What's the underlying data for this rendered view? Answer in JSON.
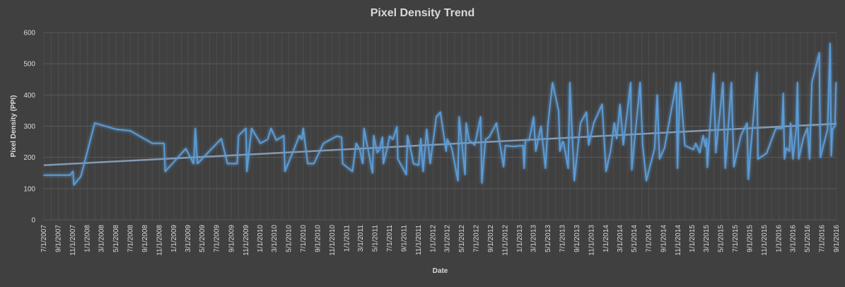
{
  "chart_data": {
    "type": "line",
    "title": "Pixel Density Trend",
    "xlabel": "Date",
    "ylabel": "Pixel Density (PPI)",
    "ylim": [
      0,
      600
    ],
    "yticks": [
      0,
      100,
      200,
      300,
      400,
      500,
      600
    ],
    "xlim": [
      "2007-07-01",
      "2016-09-01"
    ],
    "x_tick_labels": [
      "7/1/2007",
      "9/1/2007",
      "11/1/2007",
      "1/1/2008",
      "3/1/2008",
      "5/1/2008",
      "7/1/2008",
      "9/1/2008",
      "11/1/2008",
      "1/1/2009",
      "3/1/2009",
      "5/1/2009",
      "7/1/2009",
      "9/1/2009",
      "11/1/2009",
      "1/1/2010",
      "3/1/2010",
      "5/1/2010",
      "7/1/2010",
      "9/1/2010",
      "11/1/2010",
      "1/1/2011",
      "3/1/2011",
      "5/1/2011",
      "7/1/2011",
      "9/1/2011",
      "11/1/2011",
      "1/1/2012",
      "3/1/2012",
      "5/1/2012",
      "7/1/2012",
      "9/1/2012",
      "11/1/2012",
      "1/1/2013",
      "3/1/2013",
      "5/1/2013",
      "7/1/2013",
      "9/1/2013",
      "11/1/2013",
      "1/1/2014",
      "3/1/2014",
      "5/1/2014",
      "7/1/2014",
      "9/1/2014",
      "11/1/2014",
      "1/1/2015",
      "3/1/2015",
      "5/1/2015",
      "7/1/2015",
      "9/1/2015",
      "11/1/2015",
      "1/1/2016",
      "3/1/2016",
      "5/1/2016",
      "7/1/2016",
      "9/1/2016"
    ],
    "grid": true,
    "legend": "none",
    "series": [
      {
        "color": "#5b9bd5",
        "points": [
          [
            "2007-07-01",
            143
          ],
          [
            "2007-08-15",
            143
          ],
          [
            "2007-09-15",
            143
          ],
          [
            "2007-10-20",
            143
          ],
          [
            "2007-11-01",
            155
          ],
          [
            "2007-11-05",
            112
          ],
          [
            "2007-12-05",
            140
          ],
          [
            "2008-02-01",
            310
          ],
          [
            "2008-05-01",
            290
          ],
          [
            "2008-07-01",
            285
          ],
          [
            "2008-10-01",
            245
          ],
          [
            "2008-11-20",
            245
          ],
          [
            "2008-11-25",
            155
          ],
          [
            "2009-02-20",
            228
          ],
          [
            "2009-03-25",
            180
          ],
          [
            "2009-04-01",
            293
          ],
          [
            "2009-04-10",
            180
          ],
          [
            "2009-07-20",
            260
          ],
          [
            "2009-08-15",
            180
          ],
          [
            "2009-09-25",
            180
          ],
          [
            "2009-10-01",
            270
          ],
          [
            "2009-11-01",
            293
          ],
          [
            "2009-11-05",
            155
          ],
          [
            "2009-11-25",
            293
          ],
          [
            "2010-01-01",
            245
          ],
          [
            "2010-02-01",
            258
          ],
          [
            "2010-02-15",
            293
          ],
          [
            "2010-03-10",
            255
          ],
          [
            "2010-04-10",
            270
          ],
          [
            "2010-04-15",
            155
          ],
          [
            "2010-05-20",
            220
          ],
          [
            "2010-06-15",
            270
          ],
          [
            "2010-06-25",
            258
          ],
          [
            "2010-07-01",
            293
          ],
          [
            "2010-07-20",
            180
          ],
          [
            "2010-08-15",
            180
          ],
          [
            "2010-09-25",
            245
          ],
          [
            "2010-11-20",
            268
          ],
          [
            "2010-12-10",
            265
          ],
          [
            "2010-12-15",
            180
          ],
          [
            "2011-01-25",
            155
          ],
          [
            "2011-02-10",
            245
          ],
          [
            "2011-02-25",
            225
          ],
          [
            "2011-03-10",
            180
          ],
          [
            "2011-03-15",
            293
          ],
          [
            "2011-04-20",
            150
          ],
          [
            "2011-04-25",
            270
          ],
          [
            "2011-05-10",
            215
          ],
          [
            "2011-05-20",
            225
          ],
          [
            "2011-06-01",
            265
          ],
          [
            "2011-06-05",
            180
          ],
          [
            "2011-06-20",
            225
          ],
          [
            "2011-07-01",
            268
          ],
          [
            "2011-07-15",
            258
          ],
          [
            "2011-08-01",
            298
          ],
          [
            "2011-08-05",
            195
          ],
          [
            "2011-09-10",
            145
          ],
          [
            "2011-09-15",
            270
          ],
          [
            "2011-10-01",
            215
          ],
          [
            "2011-10-10",
            180
          ],
          [
            "2011-11-01",
            175
          ],
          [
            "2011-11-10",
            260
          ],
          [
            "2011-11-20",
            155
          ],
          [
            "2011-12-05",
            290
          ],
          [
            "2011-12-20",
            180
          ],
          [
            "2012-01-15",
            330
          ],
          [
            "2012-02-01",
            345
          ],
          [
            "2012-02-25",
            220
          ],
          [
            "2012-03-01",
            258
          ],
          [
            "2012-03-20",
            230
          ],
          [
            "2012-04-15",
            125
          ],
          [
            "2012-04-20",
            330
          ],
          [
            "2012-05-15",
            145
          ],
          [
            "2012-05-20",
            310
          ],
          [
            "2012-06-01",
            255
          ],
          [
            "2012-06-25",
            240
          ],
          [
            "2012-07-20",
            330
          ],
          [
            "2012-07-25",
            118
          ],
          [
            "2012-08-10",
            258
          ],
          [
            "2012-08-25",
            265
          ],
          [
            "2012-09-25",
            310
          ],
          [
            "2012-10-25",
            170
          ],
          [
            "2012-11-01",
            238
          ],
          [
            "2012-12-05",
            235
          ],
          [
            "2013-01-15",
            238
          ],
          [
            "2013-01-20",
            165
          ],
          [
            "2013-01-25",
            255
          ],
          [
            "2013-02-10",
            255
          ],
          [
            "2013-03-01",
            330
          ],
          [
            "2013-03-10",
            220
          ],
          [
            "2013-04-01",
            300
          ],
          [
            "2013-04-20",
            165
          ],
          [
            "2013-05-01",
            310
          ],
          [
            "2013-05-20",
            440
          ],
          [
            "2013-06-15",
            348
          ],
          [
            "2013-06-20",
            220
          ],
          [
            "2013-07-01",
            250
          ],
          [
            "2013-07-05",
            250
          ],
          [
            "2013-07-25",
            165
          ],
          [
            "2013-08-01",
            440
          ],
          [
            "2013-08-20",
            125
          ],
          [
            "2013-09-15",
            310
          ],
          [
            "2013-10-10",
            345
          ],
          [
            "2013-10-20",
            240
          ],
          [
            "2013-11-10",
            310
          ],
          [
            "2013-12-15",
            370
          ],
          [
            "2014-01-01",
            155
          ],
          [
            "2014-01-20",
            220
          ],
          [
            "2014-02-05",
            310
          ],
          [
            "2014-02-15",
            260
          ],
          [
            "2014-03-01",
            370
          ],
          [
            "2014-03-15",
            240
          ],
          [
            "2014-04-15",
            440
          ],
          [
            "2014-04-20",
            160
          ],
          [
            "2014-05-25",
            440
          ],
          [
            "2014-06-05",
            240
          ],
          [
            "2014-06-20",
            125
          ],
          [
            "2014-07-25",
            228
          ],
          [
            "2014-08-05",
            400
          ],
          [
            "2014-08-15",
            195
          ],
          [
            "2014-09-05",
            230
          ],
          [
            "2014-10-25",
            440
          ],
          [
            "2014-10-30",
            165
          ],
          [
            "2014-11-10",
            440
          ],
          [
            "2014-11-30",
            238
          ],
          [
            "2015-01-05",
            225
          ],
          [
            "2015-01-15",
            245
          ],
          [
            "2015-02-01",
            215
          ],
          [
            "2015-02-15",
            270
          ],
          [
            "2015-02-25",
            235
          ],
          [
            "2015-03-01",
            260
          ],
          [
            "2015-03-05",
            168
          ],
          [
            "2015-04-01",
            470
          ],
          [
            "2015-04-10",
            215
          ],
          [
            "2015-05-10",
            440
          ],
          [
            "2015-05-20",
            165
          ],
          [
            "2015-06-15",
            440
          ],
          [
            "2015-06-25",
            170
          ],
          [
            "2015-07-25",
            270
          ],
          [
            "2015-08-20",
            310
          ],
          [
            "2015-08-25",
            130
          ],
          [
            "2015-10-01",
            472
          ],
          [
            "2015-10-05",
            195
          ],
          [
            "2015-11-10",
            213
          ],
          [
            "2015-12-20",
            293
          ],
          [
            "2016-01-15",
            293
          ],
          [
            "2016-01-20",
            405
          ],
          [
            "2016-01-25",
            195
          ],
          [
            "2016-02-01",
            230
          ],
          [
            "2016-02-15",
            220
          ],
          [
            "2016-02-20",
            310
          ],
          [
            "2016-03-01",
            195
          ],
          [
            "2016-03-15",
            295
          ],
          [
            "2016-03-20",
            440
          ],
          [
            "2016-03-25",
            195
          ],
          [
            "2016-04-15",
            265
          ],
          [
            "2016-05-01",
            295
          ],
          [
            "2016-05-10",
            195
          ],
          [
            "2016-05-20",
            440
          ],
          [
            "2016-06-20",
            535
          ],
          [
            "2016-06-25",
            200
          ],
          [
            "2016-07-25",
            290
          ],
          [
            "2016-08-05",
            565
          ],
          [
            "2016-08-10",
            205
          ],
          [
            "2016-08-15",
            290
          ],
          [
            "2016-08-25",
            300
          ],
          [
            "2016-08-30",
            440
          ]
        ]
      }
    ],
    "trendline": {
      "color": "#8ea9c8",
      "from": [
        "2007-07-01",
        175
      ],
      "to": [
        "2016-09-01",
        308
      ]
    }
  }
}
